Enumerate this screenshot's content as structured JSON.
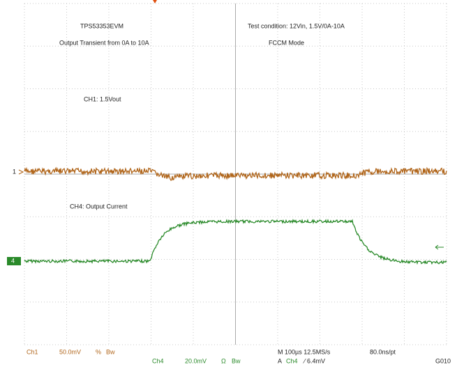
{
  "header": {
    "left_title": "TPS53353EVM",
    "left_subtitle": "Output Transient from 0A to 10A",
    "right_title": "Test condition: 12Vin, 1.5V/0A-10A",
    "right_subtitle": "FCCM Mode"
  },
  "annotations": {
    "ch1": "CH1: 1.5Vout",
    "ch4": "CH4: Output Current"
  },
  "markers": {
    "ch1": "1",
    "ch4": "4"
  },
  "status_bar": {
    "ch1_label": "Ch1",
    "ch1_scale": "50.0mV",
    "ch1_coupling": "%",
    "ch1_bw": "Bw",
    "ch4_label": "Ch4",
    "ch4_scale": "20.0mV",
    "ch4_coupling": "Ω",
    "ch4_bw": "Bw",
    "timebase": "M 100µs 12.5MS/s",
    "resolution": "80.0ns/pt",
    "trigger_source": "A",
    "trigger_channel": "Ch4",
    "trigger_level": "⁄ 6.4mV",
    "id": "G010"
  }
}
